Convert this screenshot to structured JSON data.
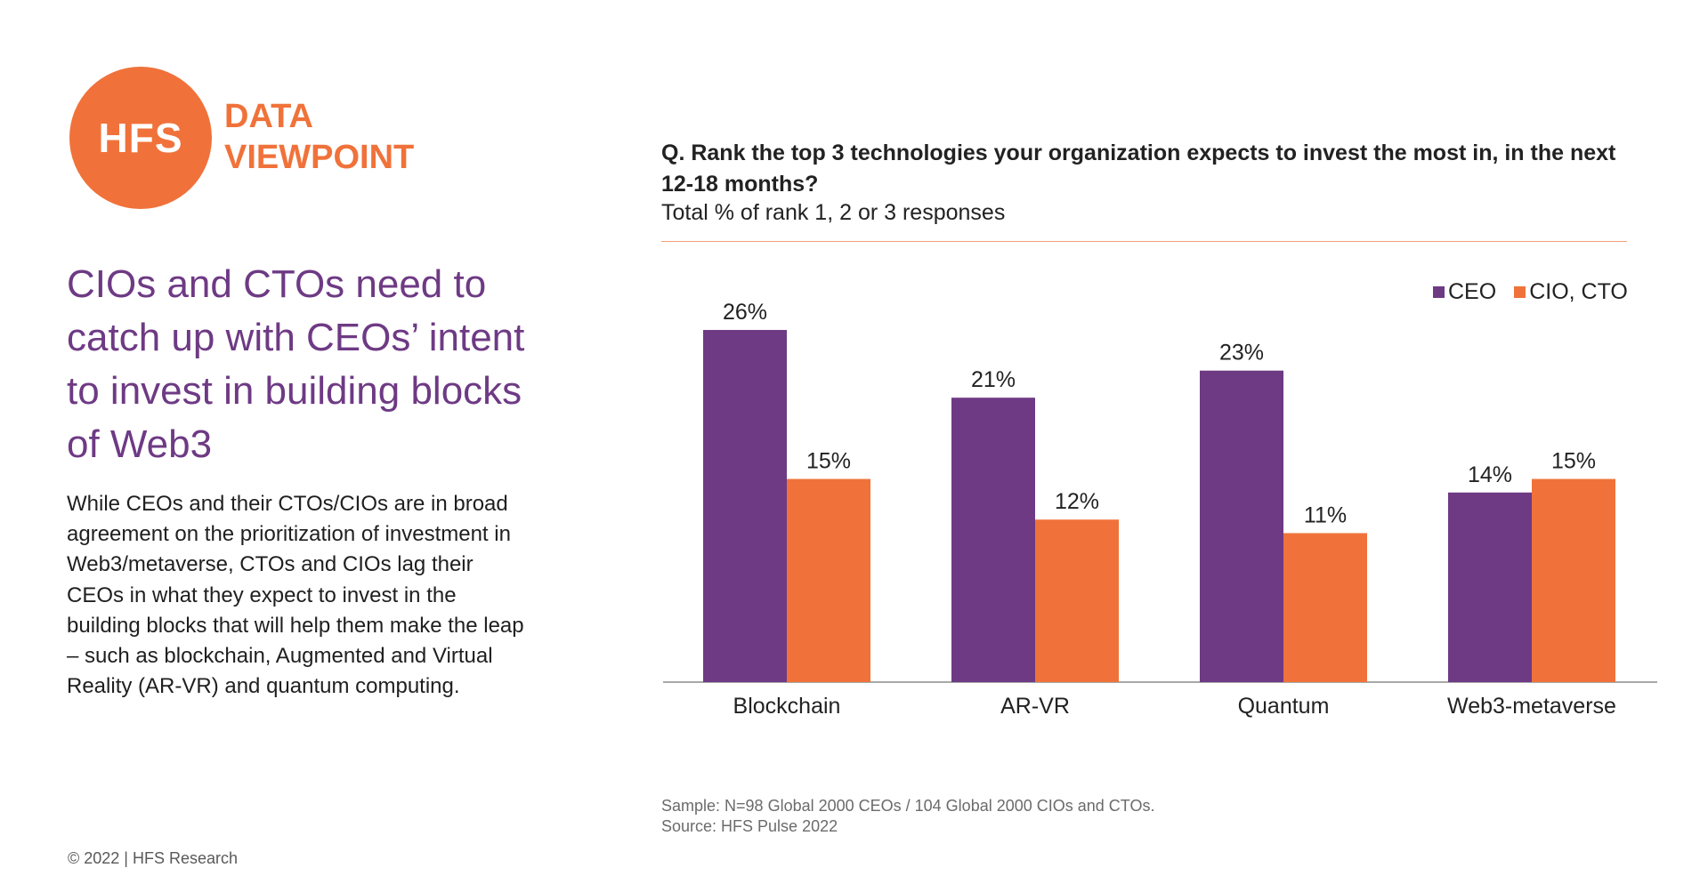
{
  "brand": {
    "logo_text": "HFS",
    "line1": "DATA",
    "line2": "VIEWPOINT"
  },
  "headline": "CIOs and CTOs need to catch up with CEOs’ intent to invest in building blocks of Web3",
  "body": "While CEOs and their CTOs/CIOs are in broad agreement on the prioritization of investment in Web3/metaverse, CTOs and CIOs lag their CEOs in what they expect to invest in the building blocks that will help them make the leap – such as blockchain, Augmented and Virtual Reality (AR-VR) and quantum computing.",
  "copyright": "© 2022 | HFS Research",
  "question": "Q. Rank the top 3 technologies your organization expects to invest the most in, in the next 12-18 months?",
  "subtitle": "Total % of rank 1, 2 or 3 responses",
  "colors": {
    "ceo": "#6e3a84",
    "cio_cto": "#f0723a",
    "accent": "#f0723a"
  },
  "chart_data": {
    "type": "bar",
    "title": "Q. Rank the top 3 technologies your organization expects to invest the most in, in the next 12-18 months?",
    "subtitle": "Total % of rank 1, 2 or 3 responses",
    "categories": [
      "Blockchain",
      "AR-VR",
      "Quantum",
      "Web3-metaverse"
    ],
    "series": [
      {
        "name": "CEO",
        "values": [
          26,
          21,
          23,
          14
        ],
        "labels": [
          "26%",
          "21%",
          "23%",
          "14%"
        ]
      },
      {
        "name": "CIO, CTO",
        "values": [
          15,
          12,
          11,
          15
        ],
        "labels": [
          "15%",
          "12%",
          "11%",
          "15%"
        ]
      }
    ],
    "ylim": [
      0,
      30
    ],
    "grid": false,
    "legend_position": "top-right",
    "xlabel": "",
    "ylabel": ""
  },
  "source": {
    "sample": "Sample: N=98 Global 2000 CEOs / 104 Global 2000 CIOs and CTOs.",
    "source": "Source: HFS Pulse 2022"
  }
}
